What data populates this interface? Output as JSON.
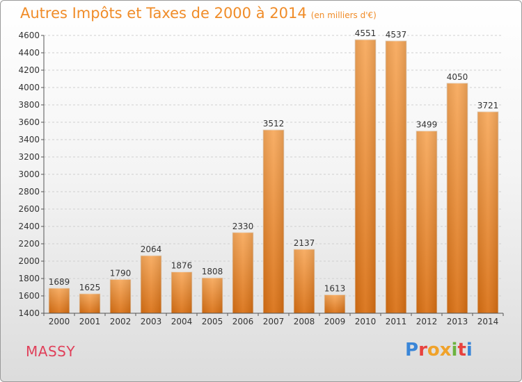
{
  "title": "Autres Impôts et Taxes de 2000 à 2014",
  "unit": "(en milliers d'€)",
  "place": "MASSY",
  "logo": {
    "text": "Proxiti",
    "colors": [
      "#3a86d8",
      "#e8423e",
      "#f0a22a",
      "#f0a22a",
      "#6cb33f",
      "#e8423e",
      "#3a86d8"
    ]
  },
  "colors": {
    "bar": "#f08c28",
    "bar_light": "#f7a85a",
    "bar_dark": "#d96f12",
    "title": "#f08c28",
    "place": "#e0405a"
  },
  "chart_data": {
    "type": "bar",
    "title": "Autres Impôts et Taxes de 2000 à 2014",
    "subtitle": "(en milliers d'€)",
    "categories": [
      "2000",
      "2001",
      "2002",
      "2003",
      "2004",
      "2005",
      "2006",
      "2007",
      "2008",
      "2009",
      "2010",
      "2011",
      "2012",
      "2013",
      "2014"
    ],
    "values": [
      1689,
      1625,
      1790,
      2064,
      1876,
      1808,
      2330,
      3512,
      2137,
      1613,
      4551,
      4537,
      3499,
      4050,
      3721
    ],
    "ylim": [
      1400,
      4600
    ],
    "yticks": [
      1400,
      1600,
      1800,
      2000,
      2200,
      2400,
      2600,
      2800,
      3000,
      3200,
      3400,
      3600,
      3800,
      4000,
      4200,
      4400,
      4600
    ],
    "grid": true,
    "xlabel": "",
    "ylabel": ""
  }
}
